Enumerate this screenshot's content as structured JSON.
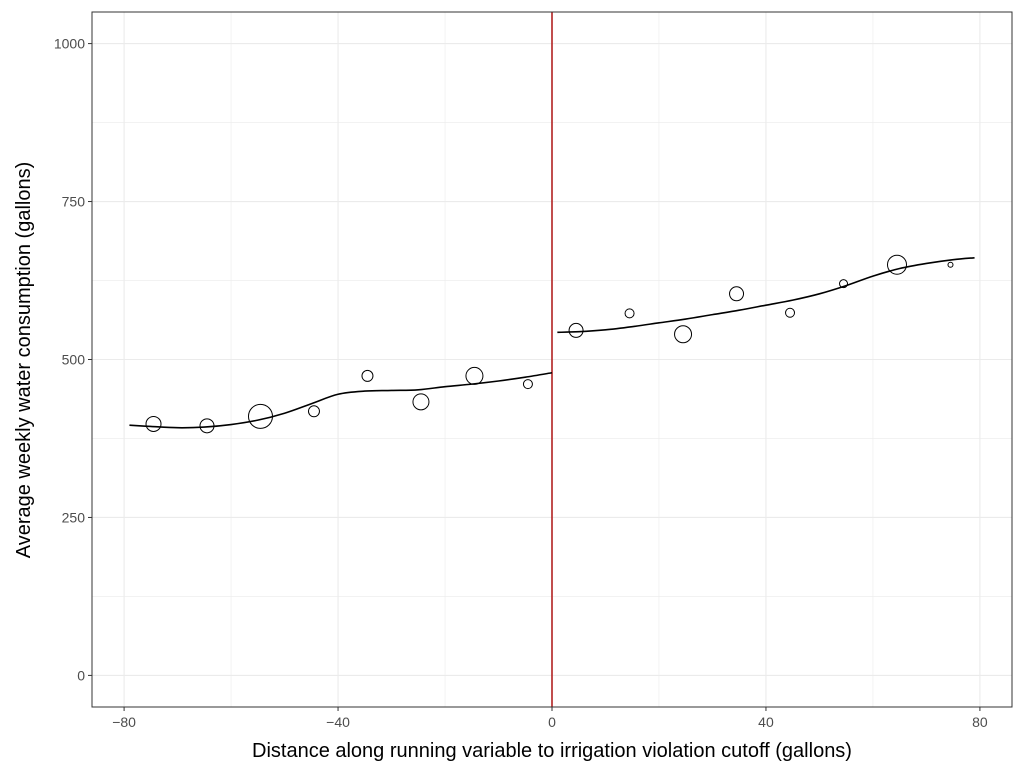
{
  "chart_data": {
    "type": "scatter",
    "title": "",
    "xlabel": "Distance along running variable to irrigation violation cutoff (gallons)",
    "ylabel": "Average weekly water consumption (gallons)",
    "xlim": [
      -86,
      86
    ],
    "ylim": [
      -50,
      1050
    ],
    "x_ticks": [
      -80,
      -40,
      0,
      40,
      80
    ],
    "x_tick_labels": [
      "−80",
      "−40",
      "0",
      "40",
      "80"
    ],
    "y_ticks": [
      0,
      250,
      500,
      750,
      1000
    ],
    "y_tick_labels": [
      "0",
      "250",
      "500",
      "750",
      "1000"
    ],
    "grid": true,
    "cutoff": {
      "x": 0,
      "color": "#b22222"
    },
    "points": [
      {
        "x": -74.5,
        "y": 398,
        "r": 7.5
      },
      {
        "x": -64.5,
        "y": 395,
        "r": 7
      },
      {
        "x": -54.5,
        "y": 410,
        "r": 12
      },
      {
        "x": -44.5,
        "y": 418,
        "r": 5.5
      },
      {
        "x": -34.5,
        "y": 474,
        "r": 5.5
      },
      {
        "x": -24.5,
        "y": 433,
        "r": 8
      },
      {
        "x": -14.5,
        "y": 474,
        "r": 8.5
      },
      {
        "x": -4.5,
        "y": 461,
        "r": 4.5
      },
      {
        "x": 4.5,
        "y": 546,
        "r": 7
      },
      {
        "x": 14.5,
        "y": 573,
        "r": 4.5
      },
      {
        "x": 24.5,
        "y": 540,
        "r": 8.5
      },
      {
        "x": 34.5,
        "y": 604,
        "r": 7
      },
      {
        "x": 44.5,
        "y": 574,
        "r": 4.5
      },
      {
        "x": 54.5,
        "y": 620,
        "r": 4
      },
      {
        "x": 64.5,
        "y": 650,
        "r": 9.5
      },
      {
        "x": 74.5,
        "y": 650,
        "r": 2.5
      }
    ],
    "fit_left": {
      "x": [
        -79,
        -75,
        -70,
        -65,
        -60,
        -55,
        -50,
        -45,
        -40,
        -35,
        -30,
        -25,
        -20,
        -15,
        -10,
        -5,
        0
      ],
      "y": [
        396,
        394,
        392,
        393,
        397,
        404,
        415,
        430,
        445,
        450,
        451,
        452,
        457,
        461,
        466,
        472,
        479
      ]
    },
    "fit_right": {
      "x": [
        1,
        5,
        10,
        15,
        20,
        25,
        30,
        35,
        40,
        45,
        50,
        55,
        60,
        65,
        70,
        75,
        79
      ],
      "y": [
        543,
        544,
        547,
        552,
        558,
        564,
        571,
        578,
        586,
        594,
        604,
        617,
        632,
        644,
        652,
        658,
        661
      ]
    },
    "colors": {
      "points": "#000000",
      "fit": "#000000",
      "grid": "#ebebeb",
      "axis": "#333333"
    }
  }
}
